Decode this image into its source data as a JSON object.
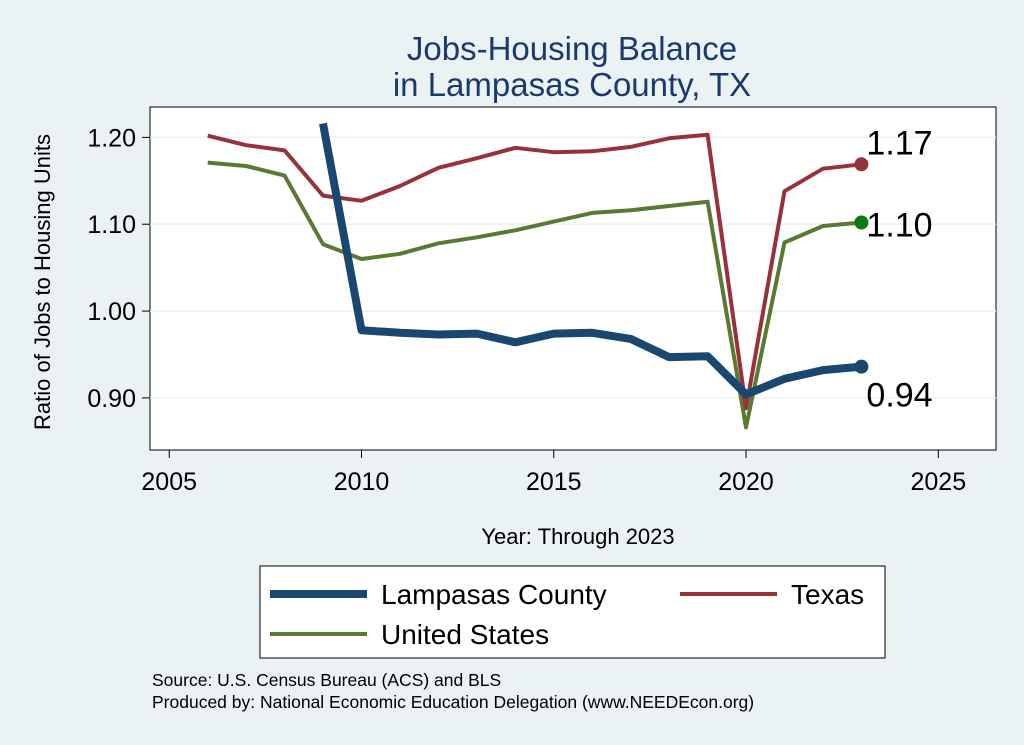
{
  "chart_data": {
    "type": "line",
    "title": [
      "Jobs-Housing Balance",
      "in Lampasas County, TX"
    ],
    "xlabel": "Year: Through 2023",
    "ylabel": "Ratio of Jobs to Housing Units",
    "xlim": [
      2004.5,
      2026.5
    ],
    "ylim": [
      0.84,
      1.235
    ],
    "xticks": [
      {
        "value": 2005,
        "label": "2005"
      },
      {
        "value": 2010,
        "label": "2010"
      },
      {
        "value": 2015,
        "label": "2015"
      },
      {
        "value": 2020,
        "label": "2020"
      },
      {
        "value": 2025,
        "label": "2025"
      }
    ],
    "yticks": [
      {
        "value": 0.9,
        "label": "0.90"
      },
      {
        "value": 1.0,
        "label": "1.00"
      },
      {
        "value": 1.1,
        "label": "1.10"
      },
      {
        "value": 1.2,
        "label": "1.20"
      }
    ],
    "grid": true,
    "series": [
      {
        "name": "United States",
        "key": "united-states",
        "color": "#5a7a32",
        "width": 4,
        "x": [
          2006,
          2007,
          2008,
          2009,
          2010,
          2011,
          2012,
          2013,
          2014,
          2015,
          2016,
          2017,
          2018,
          2019,
          2020,
          2021,
          2022,
          2023
        ],
        "values": [
          1.171,
          1.167,
          1.156,
          1.077,
          1.06,
          1.066,
          1.078,
          1.085,
          1.093,
          1.103,
          1.113,
          1.116,
          1.121,
          1.126,
          0.866,
          1.079,
          1.098,
          1.102
        ],
        "end_label": "1.10"
      },
      {
        "name": "Texas",
        "key": "texas",
        "color": "#983239",
        "width": 4,
        "x": [
          2006,
          2007,
          2008,
          2009,
          2010,
          2011,
          2012,
          2013,
          2014,
          2015,
          2016,
          2017,
          2018,
          2019,
          2020,
          2021,
          2022,
          2023
        ],
        "values": [
          1.202,
          1.191,
          1.185,
          1.133,
          1.127,
          1.144,
          1.165,
          1.176,
          1.188,
          1.183,
          1.184,
          1.189,
          1.199,
          1.203,
          0.888,
          1.138,
          1.164,
          1.169
        ],
        "end_label": "1.17"
      },
      {
        "name": "Lampasas County",
        "key": "lampasas-county",
        "color": "#1a476f",
        "width": 8,
        "x": [
          2009,
          2010,
          2011,
          2012,
          2013,
          2014,
          2015,
          2016,
          2017,
          2018,
          2019,
          2020,
          2021,
          2022,
          2023
        ],
        "values": [
          1.216,
          0.978,
          0.975,
          0.973,
          0.974,
          0.964,
          0.974,
          0.975,
          0.968,
          0.947,
          0.948,
          0.904,
          0.922,
          0.932,
          0.936
        ],
        "end_label": "0.94"
      }
    ],
    "legend": {
      "placement": "bottom",
      "items": [
        {
          "series": "lampasas-county",
          "label": "Lampasas County"
        },
        {
          "series": "texas",
          "label": "Texas"
        },
        {
          "series": "united-states",
          "label": "United States"
        }
      ]
    }
  },
  "source_lines": [
    "Source: U.S. Census Bureau (ACS) and BLS",
    "Produced by: National Economic Education Delegation (www.NEEDEcon.org)"
  ]
}
